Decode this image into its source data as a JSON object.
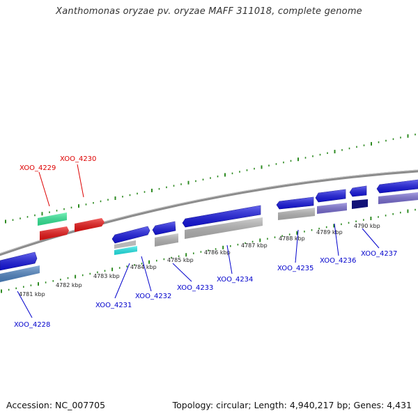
{
  "title": "Xanthomonas oryzae pv. oryzae MAFF 311018, complete genome",
  "footer": {
    "accession": "Accession: NC_007705",
    "topology": "Topology: circular; Length: 4,940,217 bp; Genes: 4,431"
  },
  "colors": {
    "ruler_ticks": "#2e8b22",
    "backbone": "#8c8c8c",
    "gene_forward": "#1414e6",
    "gene_red": "#ee1111",
    "gene_green": "#33ee99",
    "gene_gray": "#b8b8b8",
    "gene_cyan": "#22eeee",
    "gene_steel": "#4f86c6",
    "gene_purple": "#7b6fd6",
    "gene_navy": "#111177",
    "label_blue": "#0000cc",
    "label_red": "#dd0000"
  },
  "ruler_labels": [
    "4781 kbp",
    "4782 kbp",
    "4783 kbp",
    "4784 kbp",
    "4785 kbp",
    "4786 kbp",
    "4787 kbp",
    "4788 kbp",
    "4789 kbp",
    "4790 kbp"
  ],
  "gene_labels": {
    "xoo_4228": "XOO_4228",
    "xoo_4229": "XOO_4229",
    "xoo_4230": "XOO_4230",
    "xoo_4231": "XOO_4231",
    "xoo_4232": "XOO_4232",
    "xoo_4233": "XOO_4233",
    "xoo_4234": "XOO_4234",
    "xoo_4235": "XOO_4235",
    "xoo_4236": "XOO_4236",
    "xoo_4237": "XOO_4237"
  }
}
